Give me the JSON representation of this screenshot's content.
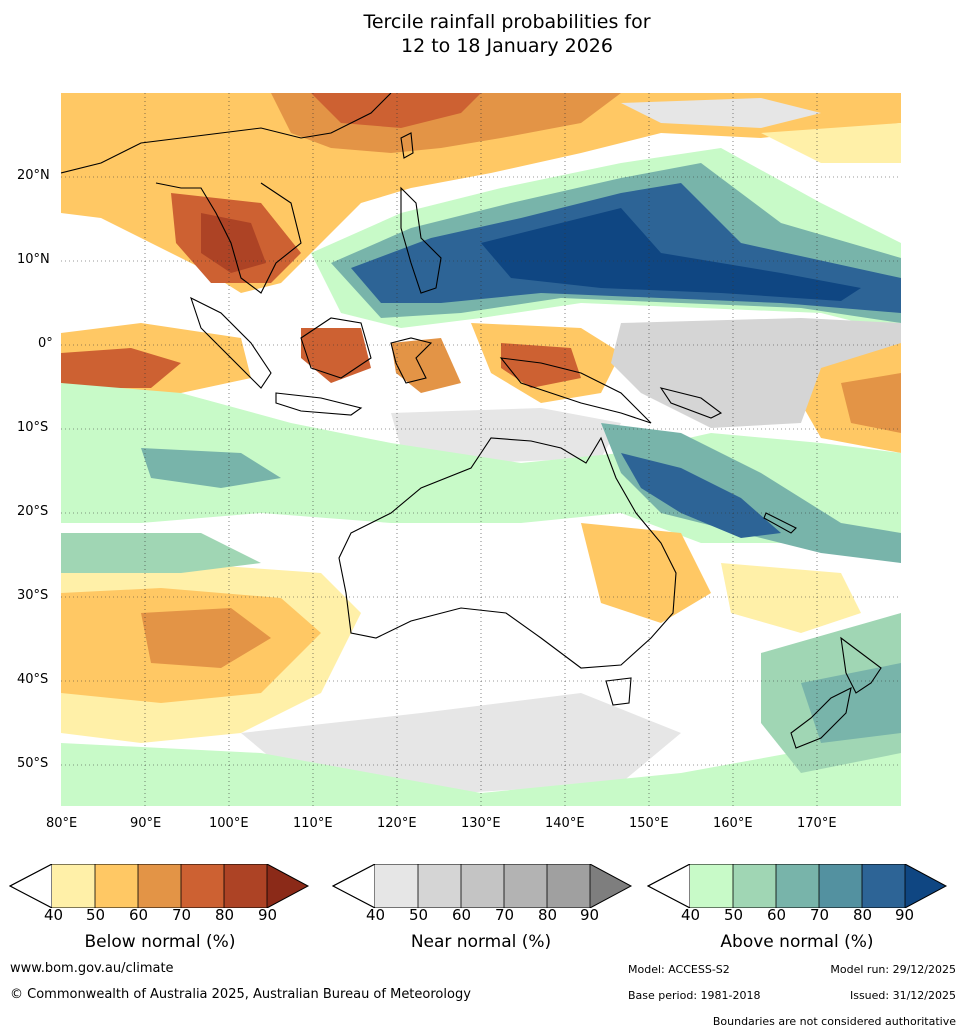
{
  "title": {
    "line1": "Tercile rainfall probabilities for",
    "line2": "12 to 18 January 2026"
  },
  "map": {
    "lat_labels": [
      "20°N",
      "10°N",
      "0°",
      "10°S",
      "20°S",
      "30°S",
      "40°S",
      "50°S"
    ],
    "lon_labels": [
      "80°E",
      "90°E",
      "100°E",
      "110°E",
      "120°E",
      "130°E",
      "140°E",
      "150°E",
      "160°E",
      "170°E"
    ],
    "lon_range": [
      80,
      180
    ],
    "lat_range": [
      -55,
      30
    ]
  },
  "legends": {
    "below": {
      "title": "Below normal (%)",
      "ticks": [
        "40",
        "50",
        "60",
        "70",
        "80",
        "90"
      ],
      "colors": [
        "#fff0a8",
        "#ffc864",
        "#e39446",
        "#cd6132",
        "#ad4325",
        "#8b2a18"
      ]
    },
    "near": {
      "title": "Near normal (%)",
      "ticks": [
        "40",
        "50",
        "60",
        "70",
        "80",
        "90"
      ],
      "colors": [
        "#e6e6e6",
        "#d5d5d5",
        "#c4c4c4",
        "#b3b3b3",
        "#a0a0a0",
        "#7e7e7e"
      ]
    },
    "above": {
      "title": "Above normal (%)",
      "ticks": [
        "40",
        "50",
        "60",
        "70",
        "80",
        "90"
      ],
      "colors": [
        "#c8fac8",
        "#a0d6b4",
        "#78b4aa",
        "#5391a0",
        "#2d6496",
        "#0f4682"
      ]
    }
  },
  "footer": {
    "website": "www.bom.gov.au/climate",
    "copyright": "© Commonwealth of Australia 2025, Australian Bureau of Meteorology",
    "model": "Model: ACCESS-S2",
    "model_run": "Model run: 29/12/2025",
    "base_period": "Base period: 1981-2018",
    "issued": "Issued: 31/12/2025",
    "boundaries": "Boundaries are not considered authoritative"
  }
}
